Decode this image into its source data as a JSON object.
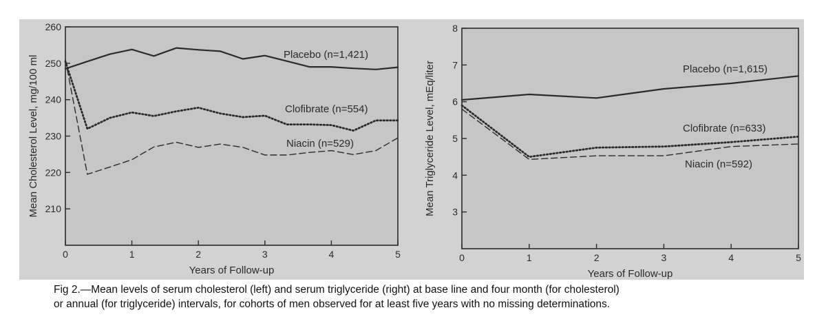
{
  "chart_data": [
    {
      "type": "line",
      "xlabel": "Years of Follow-up",
      "ylabel": "Mean Cholesterol Level, mg/100 ml",
      "xlim": [
        0,
        5
      ],
      "ylim": [
        200,
        260
      ],
      "xticks": [
        "0",
        "1",
        "2",
        "3",
        "4",
        "5"
      ],
      "yticks": [
        "210",
        "220",
        "230",
        "240",
        "250",
        "260"
      ],
      "ytick_values": [
        210,
        220,
        230,
        240,
        250,
        260
      ],
      "series": [
        {
          "name": "Placebo (n=1,421)",
          "style": "solid",
          "x": [
            0,
            0.33,
            0.67,
            1,
            1.33,
            1.67,
            2,
            2.33,
            2.67,
            3,
            3.33,
            3.67,
            4,
            4.33,
            4.67,
            5
          ],
          "y": [
            248.5,
            250.5,
            252.5,
            253.8,
            252,
            254.2,
            253.7,
            253.3,
            251.2,
            252.1,
            250.6,
            249,
            249,
            248.6,
            248.3,
            248.9
          ]
        },
        {
          "name": "Clofibrate (n=554)",
          "style": "dotted",
          "x": [
            0,
            0.33,
            0.67,
            1,
            1.33,
            1.67,
            2,
            2.33,
            2.67,
            3,
            3.33,
            3.67,
            4,
            4.33,
            4.67,
            5
          ],
          "y": [
            250.5,
            232,
            235,
            236.5,
            235.5,
            236.8,
            237.8,
            236.2,
            235.2,
            235.6,
            233.2,
            233.2,
            233,
            231.5,
            234.3,
            234.3
          ]
        },
        {
          "name": "Niacin (n=529)",
          "style": "dashed",
          "x": [
            0,
            0.33,
            0.67,
            1,
            1.33,
            1.67,
            2,
            2.33,
            2.67,
            3,
            3.33,
            3.67,
            4,
            4.33,
            4.67,
            5
          ],
          "y": [
            251,
            219.5,
            221.5,
            223.5,
            227,
            228.3,
            226.9,
            227.8,
            226.9,
            224.8,
            224.8,
            225.5,
            226,
            224.9,
            226,
            229.5
          ]
        }
      ]
    },
    {
      "type": "line",
      "xlabel": "Years of Follow-up",
      "ylabel": "Mean Triglyceride Level, mEq/liter",
      "xlim": [
        0,
        5
      ],
      "ylim": [
        2,
        8
      ],
      "xticks": [
        "0",
        "1",
        "2",
        "3",
        "4",
        "5"
      ],
      "yticks": [
        "3",
        "4",
        "5",
        "6",
        "7",
        "8"
      ],
      "ytick_values": [
        3,
        4,
        5,
        6,
        7,
        8
      ],
      "series": [
        {
          "name": "Placebo (n=1,615)",
          "style": "solid",
          "x": [
            0,
            1,
            2,
            3,
            4,
            5
          ],
          "y": [
            6.05,
            6.2,
            6.1,
            6.35,
            6.5,
            6.7
          ]
        },
        {
          "name": "Clofibrate (n=633)",
          "style": "dotted",
          "x": [
            0,
            1,
            2,
            3,
            4,
            5
          ],
          "y": [
            5.9,
            4.5,
            4.75,
            4.78,
            4.9,
            5.05
          ]
        },
        {
          "name": "Niacin (n=592)",
          "style": "dashed",
          "x": [
            0,
            1,
            2,
            3,
            4,
            5
          ],
          "y": [
            5.8,
            4.43,
            4.53,
            4.53,
            4.78,
            4.85
          ]
        }
      ]
    }
  ],
  "caption": {
    "line1": "Fig 2.—Mean levels of serum cholesterol (left) and serum triglyceride (right) at base line and four month (for cholesterol)",
    "line2": "or annual (for triglyceride) intervals, for cohorts of men observed for at least five years with no missing determinations."
  },
  "colors": {
    "panel": "#d2d2d2",
    "plot": "#c6c6c6",
    "ink": "#2a2a2a"
  }
}
